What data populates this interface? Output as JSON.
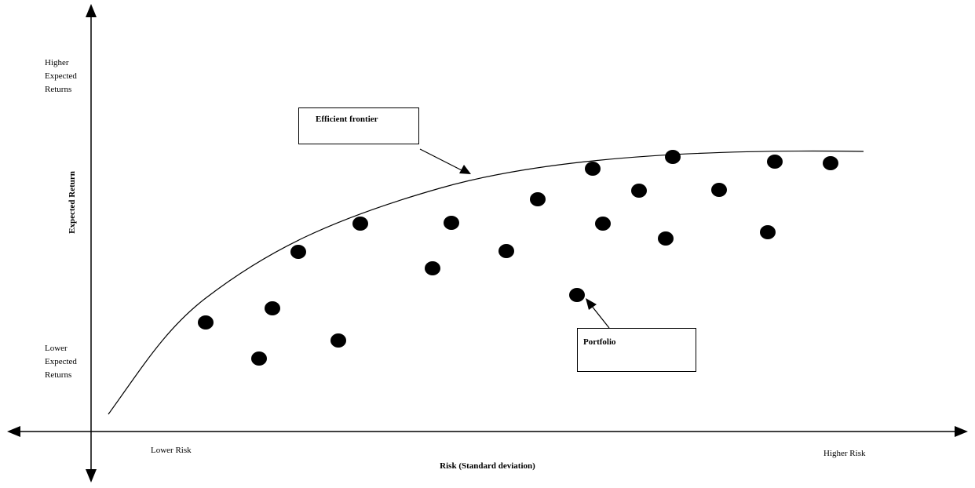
{
  "diagram": {
    "y_axis": {
      "title": "Expected Return",
      "high_label": [
        "Higher",
        "Expected",
        "Returns"
      ],
      "low_label": [
        "Lower",
        "Expected",
        "Returns"
      ]
    },
    "x_axis": {
      "title": "Risk (Standard deviation)",
      "low_label": "Lower Risk",
      "high_label": "Higher Risk"
    },
    "callouts": {
      "frontier": "Efficient frontier",
      "portfolio": "Portfolio"
    }
  }
}
